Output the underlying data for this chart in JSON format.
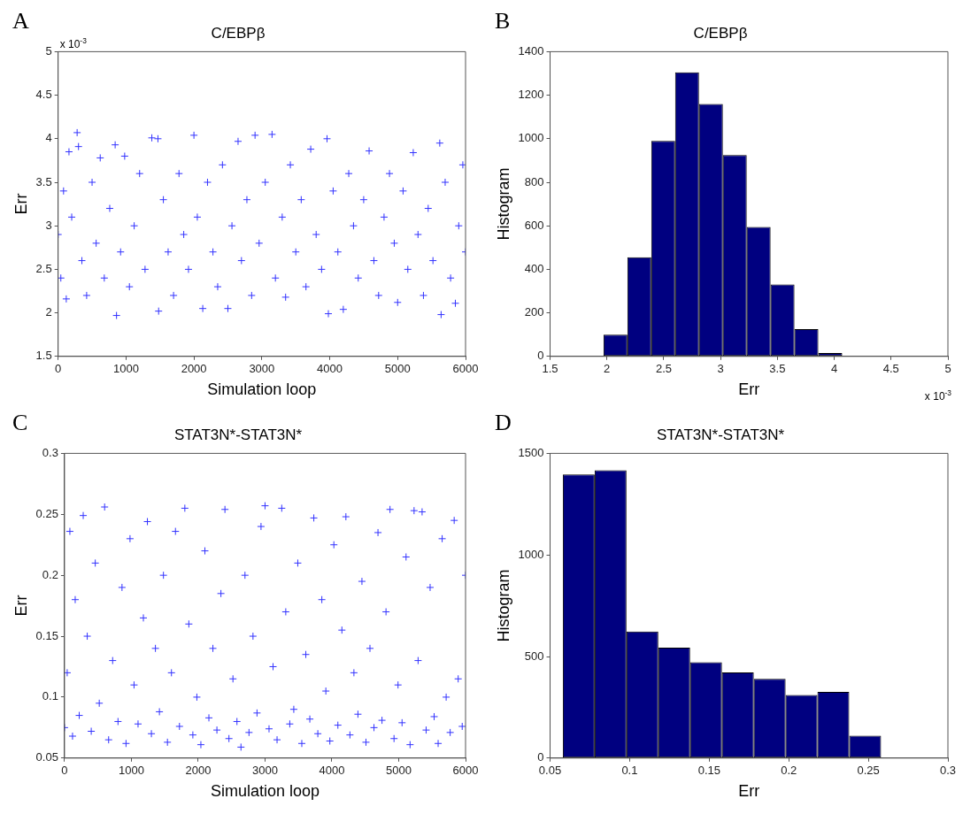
{
  "chart_data": [
    {
      "type": "scatter",
      "title": "C/EBPβ",
      "xlabel": "Simulation loop",
      "ylabel": "Err",
      "annotations": [
        "A",
        "x 10$^{-3}$"
      ],
      "marker": "cross",
      "grid": false,
      "xlim": [
        0,
        6000
      ],
      "xticks": [
        0,
        1000,
        2000,
        3000,
        4000,
        5000,
        6000
      ],
      "ylim": [
        1.5,
        5
      ],
      "yticks": [
        1.5,
        2,
        2.5,
        3,
        3.5,
        4,
        4.5,
        5
      ],
      "series": [
        {
          "color": "#3333ff",
          "x": [
            0,
            40,
            80,
            120,
            160,
            200,
            280,
            300,
            350,
            420,
            500,
            560,
            620,
            680,
            760,
            840,
            860,
            920,
            980,
            1050,
            1120,
            1200,
            1280,
            1380,
            1470,
            1480,
            1550,
            1620,
            1700,
            1780,
            1850,
            1920,
            2000,
            2050,
            2130,
            2200,
            2280,
            2350,
            2420,
            2500,
            2560,
            2650,
            2700,
            2780,
            2850,
            2900,
            2960,
            3050,
            3150,
            3200,
            3300,
            3350,
            3420,
            3500,
            3580,
            3650,
            3720,
            3800,
            3880,
            3960,
            3980,
            4050,
            4120,
            4200,
            4280,
            4350,
            4420,
            4500,
            4580,
            4650,
            4720,
            4800,
            4880,
            4950,
            5000,
            5080,
            5150,
            5230,
            5300,
            5380,
            5450,
            5520,
            5620,
            5640,
            5700,
            5780,
            5850,
            5900,
            5960,
            6000
          ],
          "values": [
            2.9,
            2.4,
            3.4,
            2.16,
            3.85,
            3.1,
            4.07,
            3.91,
            2.6,
            2.2,
            3.5,
            2.8,
            3.78,
            2.4,
            3.2,
            3.93,
            1.97,
            2.7,
            3.8,
            2.3,
            3.0,
            3.6,
            2.5,
            4.01,
            4.0,
            2.02,
            3.3,
            2.7,
            2.2,
            3.6,
            2.9,
            2.5,
            4.04,
            3.1,
            2.05,
            3.5,
            2.7,
            2.3,
            3.7,
            2.05,
            3.0,
            3.97,
            2.6,
            3.3,
            2.2,
            4.04,
            2.8,
            3.5,
            4.05,
            2.4,
            3.1,
            2.18,
            3.7,
            2.7,
            3.3,
            2.3,
            3.88,
            2.9,
            2.5,
            4.0,
            1.99,
            3.4,
            2.7,
            2.04,
            3.6,
            3.0,
            2.4,
            3.3,
            3.86,
            2.6,
            2.2,
            3.1,
            3.6,
            2.8,
            2.12,
            3.4,
            2.5,
            3.84,
            2.9,
            2.2,
            3.2,
            2.6,
            3.95,
            1.98,
            3.5,
            2.4,
            2.11,
            3.0,
            3.7,
            2.7
          ]
        }
      ]
    },
    {
      "type": "histogram",
      "title": "C/EBPβ",
      "xlabel": "Err",
      "ylabel": "Histogram",
      "annotations": [
        "B",
        "x 10$^{-3}$"
      ],
      "grid": false,
      "color": "#000080",
      "bins": [
        1.97,
        2.18,
        2.39,
        2.6,
        2.81,
        3.02,
        3.23,
        3.44,
        3.65,
        3.86,
        4.07
      ],
      "values": [
        100,
        455,
        990,
        1305,
        1160,
        925,
        595,
        330,
        125,
        15
      ],
      "xlim": [
        1.5,
        5
      ],
      "xticks": [
        1.5,
        2,
        2.5,
        3,
        3.5,
        4,
        4.5,
        5
      ],
      "ylim": [
        0,
        1400
      ],
      "yticks": [
        0,
        200,
        400,
        600,
        800,
        1000,
        1200,
        1400
      ]
    },
    {
      "type": "scatter",
      "title": "STAT3N*-STAT3N*",
      "xlabel": "Simulation loop",
      "ylabel": "Err",
      "annotations": [
        "C"
      ],
      "marker": "cross",
      "grid": false,
      "xlim": [
        0,
        6000
      ],
      "xticks": [
        0,
        1000,
        2000,
        3000,
        4000,
        5000,
        6000
      ],
      "ylim": [
        0.05,
        0.3
      ],
      "yticks": [
        0.05,
        0.1,
        0.15,
        0.2,
        0.25,
        0.3
      ],
      "series": [
        {
          "color": "#3333ff",
          "x": [
            0,
            40,
            80,
            120,
            160,
            220,
            280,
            340,
            400,
            460,
            520,
            600,
            660,
            720,
            800,
            860,
            920,
            980,
            1040,
            1100,
            1180,
            1240,
            1300,
            1360,
            1420,
            1480,
            1540,
            1600,
            1660,
            1720,
            1800,
            1860,
            1920,
            1980,
            2040,
            2100,
            2160,
            2220,
            2280,
            2340,
            2400,
            2460,
            2520,
            2580,
            2640,
            2700,
            2760,
            2820,
            2880,
            2940,
            3000,
            3060,
            3120,
            3180,
            3250,
            3310,
            3370,
            3430,
            3490,
            3550,
            3610,
            3670,
            3730,
            3790,
            3850,
            3910,
            3970,
            4030,
            4090,
            4150,
            4210,
            4270,
            4330,
            4390,
            4450,
            4510,
            4570,
            4630,
            4690,
            4750,
            4810,
            4870,
            4930,
            4990,
            5050,
            5110,
            5170,
            5230,
            5290,
            5350,
            5410,
            5470,
            5530,
            5590,
            5650,
            5710,
            5770,
            5830,
            5890,
            5950,
            6000
          ],
          "values": [
            0.075,
            0.12,
            0.236,
            0.068,
            0.18,
            0.085,
            0.249,
            0.15,
            0.072,
            0.21,
            0.095,
            0.256,
            0.065,
            0.13,
            0.08,
            0.19,
            0.062,
            0.23,
            0.11,
            0.078,
            0.165,
            0.244,
            0.07,
            0.14,
            0.088,
            0.2,
            0.063,
            0.12,
            0.236,
            0.076,
            0.255,
            0.16,
            0.069,
            0.1,
            0.061,
            0.22,
            0.083,
            0.14,
            0.073,
            0.185,
            0.254,
            0.066,
            0.115,
            0.08,
            0.059,
            0.2,
            0.071,
            0.15,
            0.087,
            0.24,
            0.257,
            0.074,
            0.125,
            0.065,
            0.255,
            0.17,
            0.078,
            0.09,
            0.21,
            0.062,
            0.135,
            0.082,
            0.247,
            0.07,
            0.18,
            0.105,
            0.064,
            0.225,
            0.077,
            0.155,
            0.248,
            0.069,
            0.12,
            0.086,
            0.195,
            0.063,
            0.14,
            0.075,
            0.235,
            0.081,
            0.17,
            0.254,
            0.066,
            0.11,
            0.079,
            0.215,
            0.061,
            0.253,
            0.13,
            0.252,
            0.073,
            0.19,
            0.084,
            0.062,
            0.23,
            0.1,
            0.071,
            0.245,
            0.115,
            0.076,
            0.2
          ]
        }
      ]
    },
    {
      "type": "histogram",
      "title": "STAT3N*-STAT3N*",
      "xlabel": "Err",
      "ylabel": "Histogram",
      "annotations": [
        "D"
      ],
      "grid": false,
      "color": "#000080",
      "bins": [
        0.058,
        0.078,
        0.098,
        0.118,
        0.138,
        0.158,
        0.178,
        0.198,
        0.218,
        0.238,
        0.258
      ],
      "values": [
        1396,
        1417,
        623,
        544,
        472,
        422,
        390,
        311,
        326,
        110
      ],
      "xlim": [
        0.05,
        0.3
      ],
      "xticks": [
        0.05,
        0.1,
        0.15,
        0.2,
        0.25,
        0.3
      ],
      "ylim": [
        0,
        1500
      ],
      "yticks": [
        0,
        500,
        1000,
        1500
      ]
    }
  ]
}
